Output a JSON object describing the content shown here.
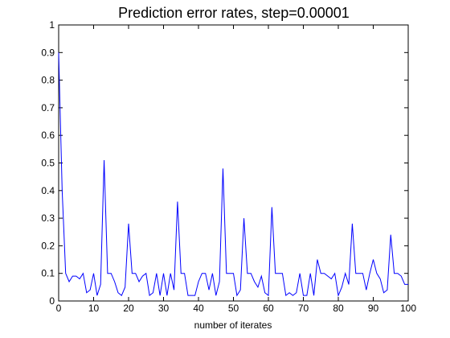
{
  "chart_data": {
    "type": "line",
    "title": "Prediction error rates, step=0.00001",
    "xlabel": "number of iterates",
    "ylabel": "",
    "xlim": [
      0,
      100
    ],
    "ylim": [
      0,
      1
    ],
    "x_ticks": [
      "0",
      "10",
      "20",
      "30",
      "40",
      "50",
      "60",
      "70",
      "80",
      "90",
      "100"
    ],
    "y_ticks": [
      "0",
      "0.1",
      "0.2",
      "0.3",
      "0.4",
      "0.5",
      "0.6",
      "0.7",
      "0.8",
      "0.9",
      "1"
    ],
    "grid": false,
    "line_color": "#0000ff",
    "series": [
      {
        "x": [
          0,
          1,
          2,
          3,
          4,
          5,
          6,
          7,
          8,
          9,
          10,
          11,
          12,
          13,
          14,
          15,
          16,
          17,
          18,
          19,
          20,
          21,
          22,
          23,
          24,
          25,
          26,
          27,
          28,
          29,
          30,
          31,
          32,
          33,
          34,
          35,
          36,
          37,
          38,
          39,
          40,
          41,
          42,
          43,
          44,
          45,
          46,
          47,
          48,
          49,
          50,
          51,
          52,
          53,
          54,
          55,
          56,
          57,
          58,
          59,
          60,
          61,
          62,
          63,
          64,
          65,
          66,
          67,
          68,
          69,
          70,
          71,
          72,
          73,
          74,
          75,
          76,
          77,
          78,
          79,
          80,
          81,
          82,
          83,
          84,
          85,
          86,
          87,
          88,
          89,
          90,
          91,
          92,
          93,
          94,
          95,
          96,
          97,
          98,
          99,
          100
        ],
        "values": [
          0.9,
          0.4,
          0.1,
          0.07,
          0.09,
          0.09,
          0.08,
          0.1,
          0.03,
          0.04,
          0.1,
          0.02,
          0.06,
          0.51,
          0.1,
          0.1,
          0.07,
          0.03,
          0.02,
          0.05,
          0.28,
          0.1,
          0.1,
          0.07,
          0.09,
          0.1,
          0.02,
          0.03,
          0.1,
          0.02,
          0.1,
          0.02,
          0.1,
          0.04,
          0.36,
          0.1,
          0.1,
          0.02,
          0.02,
          0.02,
          0.07,
          0.1,
          0.1,
          0.04,
          0.1,
          0.02,
          0.07,
          0.48,
          0.1,
          0.1,
          0.1,
          0.02,
          0.04,
          0.3,
          0.1,
          0.1,
          0.07,
          0.05,
          0.09,
          0.03,
          0.02,
          0.34,
          0.1,
          0.1,
          0.1,
          0.02,
          0.03,
          0.02,
          0.03,
          0.1,
          0.02,
          0.02,
          0.1,
          0.02,
          0.15,
          0.1,
          0.1,
          0.09,
          0.08,
          0.1,
          0.02,
          0.05,
          0.1,
          0.06,
          0.28,
          0.1,
          0.1,
          0.1,
          0.04,
          0.1,
          0.15,
          0.1,
          0.08,
          0.03,
          0.04,
          0.24,
          0.1,
          0.1,
          0.09,
          0.06,
          0.06
        ]
      }
    ]
  }
}
